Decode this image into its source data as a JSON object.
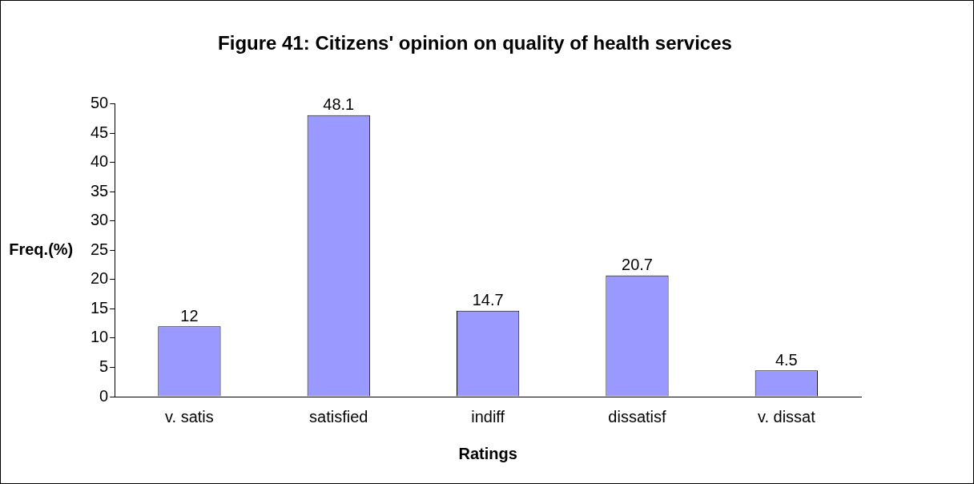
{
  "chart_data": {
    "type": "bar",
    "title": "Figure 41: Citizens' opinion on quality of health services",
    "xlabel": "Ratings",
    "ylabel": "Freq.(%)",
    "categories": [
      "v. satis",
      "satisfied",
      "indiff",
      "dissatisf",
      "v. dissat"
    ],
    "values": [
      12,
      48.1,
      14.7,
      20.7,
      4.5
    ],
    "color": "#9999ff",
    "ylim": [
      0,
      50
    ],
    "yticks": [
      0,
      5,
      10,
      15,
      20,
      25,
      30,
      35,
      40,
      45,
      50
    ],
    "grid": false,
    "legend": false,
    "data_labels": true
  }
}
